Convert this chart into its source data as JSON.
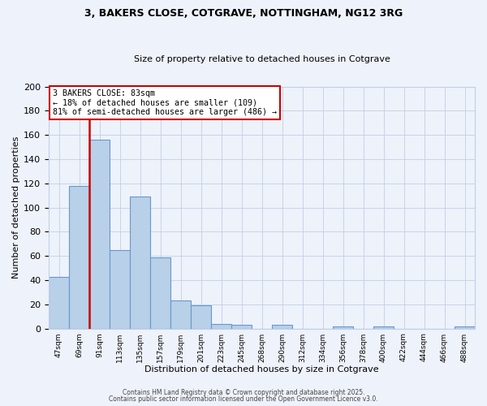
{
  "title": "3, BAKERS CLOSE, COTGRAVE, NOTTINGHAM, NG12 3RG",
  "subtitle": "Size of property relative to detached houses in Cotgrave",
  "xlabel": "Distribution of detached houses by size in Cotgrave",
  "ylabel": "Number of detached properties",
  "bar_values": [
    43,
    118,
    156,
    65,
    109,
    59,
    23,
    19,
    4,
    3,
    0,
    3,
    0,
    0,
    2,
    0,
    2,
    0,
    0,
    0,
    2
  ],
  "bin_labels": [
    "47sqm",
    "69sqm",
    "91sqm",
    "113sqm",
    "135sqm",
    "157sqm",
    "179sqm",
    "201sqm",
    "223sqm",
    "245sqm",
    "268sqm",
    "290sqm",
    "312sqm",
    "334sqm",
    "356sqm",
    "378sqm",
    "400sqm",
    "422sqm",
    "444sqm",
    "466sqm",
    "488sqm"
  ],
  "bar_color": "#b8d0e8",
  "bar_edge_color": "#6699cc",
  "annotation_box_title": "3 BAKERS CLOSE: 83sqm",
  "annotation_line1": "← 18% of detached houses are smaller (109)",
  "annotation_line2": "81% of semi-detached houses are larger (486) →",
  "vline_color": "#cc0000",
  "ylim": [
    0,
    200
  ],
  "yticks": [
    0,
    20,
    40,
    60,
    80,
    100,
    120,
    140,
    160,
    180,
    200
  ],
  "footer1": "Contains HM Land Registry data © Crown copyright and database right 2025.",
  "footer2": "Contains public sector information licensed under the Open Government Licence v3.0.",
  "background_color": "#eef2fa",
  "grid_color": "#c0cfe8",
  "annotation_box_color": "#ffffff",
  "annotation_box_edge": "#cc0000"
}
